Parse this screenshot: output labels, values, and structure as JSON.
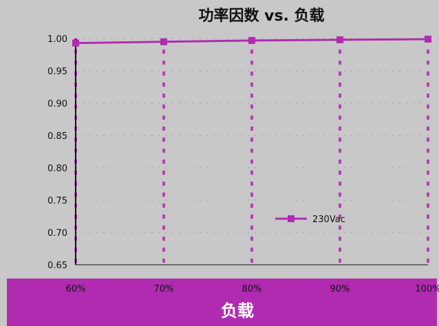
{
  "chart_data": {
    "type": "line",
    "title": "功率因数 vs. 负载",
    "xlabel": "负载",
    "ylabel": "",
    "categories": [
      "60%",
      "70%",
      "80%",
      "90%",
      "100%"
    ],
    "x": [
      60,
      70,
      80,
      90,
      100
    ],
    "series": [
      {
        "name": "230Vac",
        "values": [
          0.993,
          0.995,
          0.997,
          0.998,
          0.999
        ],
        "color": "#b02bb0"
      }
    ],
    "ylim": [
      0.65,
      1.0
    ],
    "yticks": [
      0.65,
      0.7,
      0.75,
      0.8,
      0.85,
      0.9,
      0.95,
      1.0
    ],
    "ytick_labels": [
      "0.65",
      "0.70",
      "0.75",
      "0.80",
      "0.85",
      "0.90",
      "0.95",
      "1.00"
    ],
    "grid": true,
    "legend_position": "right-center"
  },
  "colors": {
    "accent": "#b02bb0",
    "plot_background": "#c8c8c8",
    "xaxis_band": "#b02bb0"
  }
}
